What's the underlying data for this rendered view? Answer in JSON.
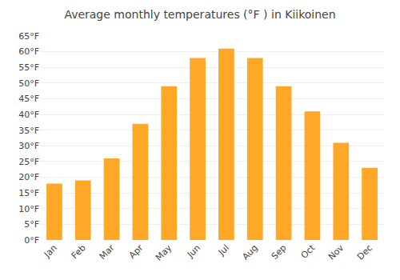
{
  "chart_data": {
    "type": "bar",
    "title": "Average monthly temperatures (°F ) in Kiikoinen",
    "categories": [
      "Jan",
      "Feb",
      "Mar",
      "Apr",
      "May",
      "Jun",
      "Jul",
      "Aug",
      "Sep",
      "Oct",
      "Nov",
      "Dec"
    ],
    "values": [
      18,
      19,
      26,
      37,
      49,
      58,
      61,
      58,
      49,
      41,
      31,
      23
    ],
    "color": "#FFA726",
    "ylim": [
      0,
      65
    ],
    "yticks": [
      {
        "value": 0,
        "label": "0°F"
      },
      {
        "value": 5,
        "label": "5°F"
      },
      {
        "value": 10,
        "label": "10°F"
      },
      {
        "value": 15,
        "label": "15°F"
      },
      {
        "value": 20,
        "label": "20°F"
      },
      {
        "value": 25,
        "label": "25°F"
      },
      {
        "value": 30,
        "label": "30°F"
      },
      {
        "value": 35,
        "label": "35°F"
      },
      {
        "value": 40,
        "label": "40°F"
      },
      {
        "value": 45,
        "label": "45°F"
      },
      {
        "value": 50,
        "label": "50°F"
      },
      {
        "value": 55,
        "label": "55°F"
      },
      {
        "value": 60,
        "label": "60°F"
      },
      {
        "value": 65,
        "label": "65°F"
      }
    ],
    "grid": true
  }
}
